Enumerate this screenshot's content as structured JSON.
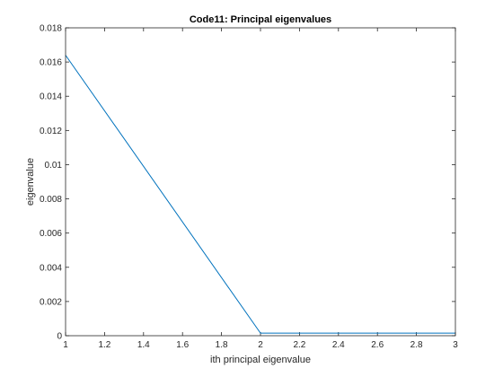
{
  "chart_data": {
    "type": "line",
    "title": "Code11: Principal eigenvalues",
    "xlabel": "ith principal eigenvalue",
    "ylabel": "eigenvalue",
    "xlim": [
      1,
      3
    ],
    "ylim": [
      0,
      0.018
    ],
    "x_ticks": [
      "1",
      "1.2",
      "1.4",
      "1.6",
      "1.8",
      "2",
      "2.2",
      "2.4",
      "2.6",
      "2.8",
      "3"
    ],
    "y_ticks": [
      "0",
      "0.002",
      "0.004",
      "0.006",
      "0.008",
      "0.01",
      "0.012",
      "0.014",
      "0.016",
      "0.018"
    ],
    "grid": false,
    "legend": "none",
    "series": [
      {
        "color": "#0072BD",
        "x": [
          1,
          2,
          3
        ],
        "y": [
          0.0164,
          0.00015,
          0.00015
        ]
      }
    ]
  }
}
